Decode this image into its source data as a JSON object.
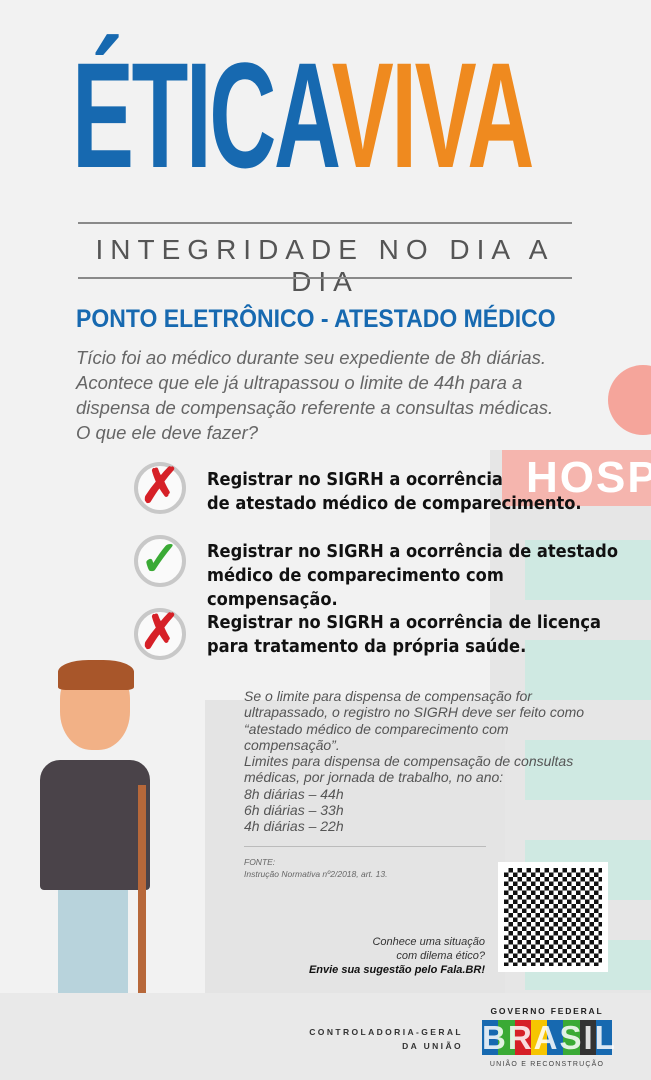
{
  "title": {
    "part1": "ÉTICA",
    "part2": "VIVA",
    "tagline": "INTEGRIDADE NO DIA A DIA"
  },
  "heading": "PONTO ELETRÔNICO - ATESTADO MÉDICO",
  "intro": [
    "Tício foi ao médico durante seu expediente de 8h diárias.",
    "Acontece que ele já ultrapassou o limite de 44h para a",
    "dispensa de compensação referente a consultas médicas.",
    "O que ele deve fazer?"
  ],
  "hospital_sign": "HOSP",
  "options": [
    {
      "lines": [
        "Registrar no SIGRH a ocorrência",
        "de atestado médico de comparecimento."
      ],
      "status": "wrong",
      "icon": "x-icon",
      "color": "#d62027"
    },
    {
      "lines": [
        "Registrar no SIGRH a ocorrência de atestado",
        "médico de comparecimento com compensação."
      ],
      "status": "correct",
      "icon": "check-icon",
      "color": "#3aaa35"
    },
    {
      "lines": [
        "Registrar no SIGRH a ocorrência de licença",
        "para tratamento da própria saúde."
      ],
      "status": "wrong",
      "icon": "x-icon",
      "color": "#d62027"
    }
  ],
  "note": [
    "Se o limite para dispensa de compensação for",
    "ultrapassado, o registro no SIGRH deve ser feito como",
    "“atestado médico de comparecimento com",
    "compensação”.",
    "Limites para dispensa de compensação de consultas",
    "médicas, por jornada de trabalho, no ano:",
    "8h diárias – 44h",
    "6h diárias – 33h",
    "4h diárias – 22h"
  ],
  "source": {
    "label": "FONTE:",
    "text": "Instrução Normativa nº2/2018, art. 13."
  },
  "fala": {
    "line1": "Conhece uma situação",
    "line2": "com dilema ético?",
    "line3": "Envie sua sugestão pelo Fala.BR!"
  },
  "footer": {
    "cgu1": "CONTROLADORIA-GERAL",
    "cgu2": "DA UNIÃO",
    "gov": "GOVERNO FEDERAL",
    "brasil": "BRASIL",
    "slogan": "UNIÃO E RECONSTRUÇÃO"
  }
}
